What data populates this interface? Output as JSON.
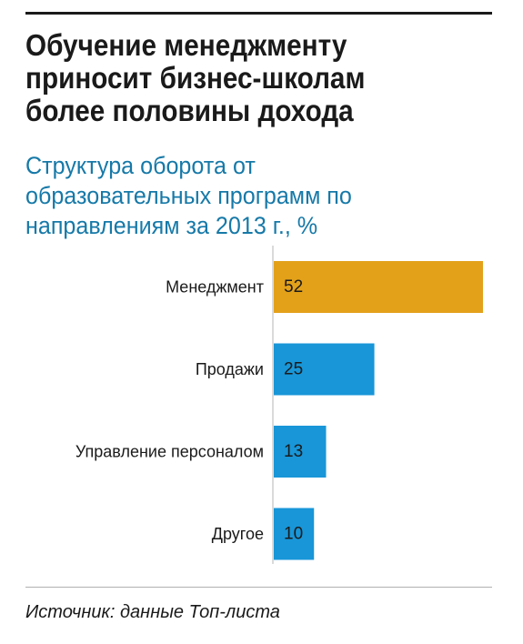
{
  "title_lines": [
    "Обучение менеджменту",
    "приносит бизнес-школам",
    "более половины дохода"
  ],
  "subtitle_lines": [
    "Структура оборота от",
    "образовательных программ по",
    "направлениям за 2013 г., %"
  ],
  "source": "Источник: данные Топ-листа",
  "colors": {
    "highlight": "#e3a11a",
    "bar": "#1896d8",
    "subtitle": "#1679a8"
  },
  "chart_data": {
    "type": "bar",
    "orientation": "horizontal",
    "categories": [
      "Менеджмент",
      "Продажи",
      "Управление персоналом",
      "Другое"
    ],
    "values": [
      52,
      25,
      13,
      10
    ],
    "bar_colors": [
      "#e3a11a",
      "#1896d8",
      "#1896d8",
      "#1896d8"
    ],
    "data_labels": [
      "52",
      "25",
      "13",
      "10"
    ],
    "xlim": [
      0,
      52
    ],
    "grid": false,
    "legend": "none"
  }
}
